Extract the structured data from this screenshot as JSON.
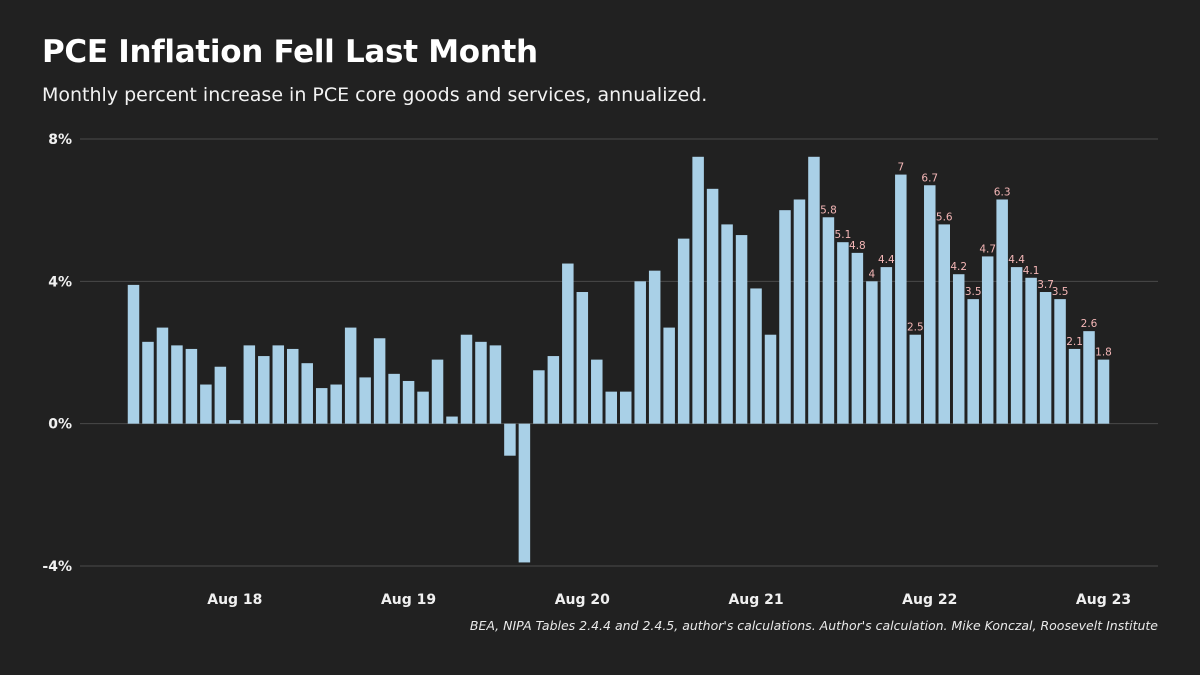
{
  "header": {
    "title": "PCE Inflation Fell Last Month",
    "subtitle": "Monthly percent increase in PCE core goods and services, annualized."
  },
  "footer": {
    "source": "BEA, NIPA Tables 2.4.4 and 2.4.5, author's calculations. Author's calculation. Mike Konczal, Roosevelt Institute"
  },
  "colors": {
    "background": "#212121",
    "bar": "#a9d0e7",
    "grid": "#4a4a4a",
    "data_label": "#f4b6b6"
  },
  "chart_data": {
    "type": "bar",
    "title": "PCE Inflation Fell Last Month",
    "subtitle": "Monthly percent increase in PCE core goods and services, annualized.",
    "xlabel": "",
    "ylabel": "",
    "ylim": [
      -4,
      8
    ],
    "yticks": [
      {
        "value": 8,
        "label": "8%"
      },
      {
        "value": 4,
        "label": "4%"
      },
      {
        "value": 0,
        "label": "0%"
      },
      {
        "value": -4,
        "label": "-4%"
      }
    ],
    "xticks": [
      {
        "index": 7,
        "label": "Aug 18"
      },
      {
        "index": 19,
        "label": "Aug 19"
      },
      {
        "index": 31,
        "label": "Aug 20"
      },
      {
        "index": 43,
        "label": "Aug 21"
      },
      {
        "index": 55,
        "label": "Aug 22"
      },
      {
        "index": 67,
        "label": "Aug 23"
      }
    ],
    "grid": true,
    "categories": [
      "Jan 18",
      "Feb 18",
      "Mar 18",
      "Apr 18",
      "May 18",
      "Jun 18",
      "Jul 18",
      "Aug 18",
      "Sep 18",
      "Oct 18",
      "Nov 18",
      "Dec 18",
      "Jan 19",
      "Feb 19",
      "Mar 19",
      "Apr 19",
      "May 19",
      "Jun 19",
      "Jul 19",
      "Aug 19",
      "Sep 19",
      "Oct 19",
      "Nov 19",
      "Dec 19",
      "Jan 20",
      "Feb 20",
      "Mar 20",
      "Apr 20",
      "May 20",
      "Jun 20",
      "Jul 20",
      "Aug 20",
      "Sep 20",
      "Oct 20",
      "Nov 20",
      "Dec 20",
      "Jan 21",
      "Feb 21",
      "Mar 21",
      "Apr 21",
      "May 21",
      "Jun 21",
      "Jul 21",
      "Aug 21",
      "Sep 21",
      "Oct 21",
      "Nov 21",
      "Dec 21",
      "Jan 22",
      "Feb 22",
      "Mar 22",
      "Apr 22",
      "May 22",
      "Jun 22",
      "Jul 22",
      "Aug 22",
      "Sep 22",
      "Oct 22",
      "Nov 22",
      "Dec 22",
      "Jan 23",
      "Feb 23",
      "Mar 23",
      "Apr 23",
      "May 23",
      "Jun 23",
      "Jul 23",
      "Aug 23"
    ],
    "values": [
      3.9,
      2.3,
      2.7,
      2.2,
      2.1,
      1.1,
      1.6,
      0.1,
      2.2,
      1.9,
      2.2,
      2.1,
      1.7,
      1.0,
      1.1,
      2.7,
      1.3,
      2.4,
      1.4,
      1.2,
      0.9,
      1.8,
      0.2,
      2.5,
      2.3,
      2.2,
      -0.9,
      -3.9,
      1.5,
      1.9,
      4.5,
      3.7,
      1.8,
      0.9,
      0.9,
      4.0,
      4.3,
      2.7,
      5.2,
      7.5,
      6.6,
      5.6,
      5.3,
      3.8,
      2.5,
      6.0,
      6.3,
      7.5,
      5.8,
      5.1,
      4.8,
      4.0,
      4.4,
      7.0,
      2.5,
      6.7,
      5.6,
      4.2,
      3.5,
      4.7,
      6.3,
      4.4,
      4.1,
      3.7,
      3.5,
      2.1,
      2.6,
      1.8
    ],
    "data_labels": [
      {
        "index": 48,
        "label": "5.8"
      },
      {
        "index": 49,
        "label": "5.1"
      },
      {
        "index": 50,
        "label": "4.8"
      },
      {
        "index": 51,
        "label": "4"
      },
      {
        "index": 52,
        "label": "4.4"
      },
      {
        "index": 53,
        "label": "7"
      },
      {
        "index": 54,
        "label": "2.5"
      },
      {
        "index": 55,
        "label": "6.7"
      },
      {
        "index": 56,
        "label": "5.6"
      },
      {
        "index": 57,
        "label": "4.2"
      },
      {
        "index": 58,
        "label": "3.5"
      },
      {
        "index": 59,
        "label": "4.7"
      },
      {
        "index": 60,
        "label": "6.3"
      },
      {
        "index": 61,
        "label": "4.4"
      },
      {
        "index": 62,
        "label": "4.1"
      },
      {
        "index": 63,
        "label": "3.7"
      },
      {
        "index": 64,
        "label": "3.5"
      },
      {
        "index": 65,
        "label": "2.1"
      },
      {
        "index": 66,
        "label": "2.6"
      },
      {
        "index": 67,
        "label": "1.8"
      }
    ],
    "source": "BEA, NIPA Tables 2.4.4 and 2.4.5, author's calculations. Author's calculation. Mike Konczal, Roosevelt Institute"
  }
}
